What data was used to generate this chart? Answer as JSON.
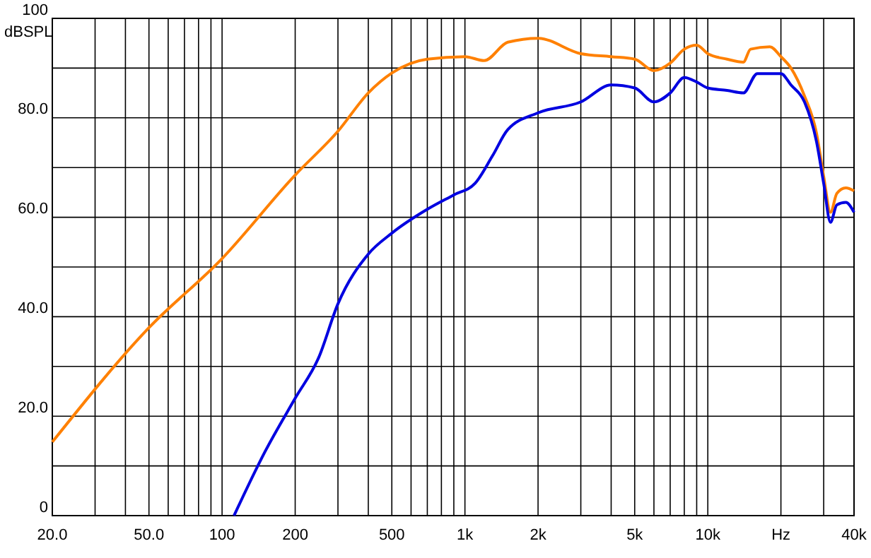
{
  "chart_data": {
    "type": "line",
    "ylabel": "dBSPL",
    "log": "x",
    "grid": true,
    "xlim": [
      20,
      40000
    ],
    "ylim": [
      0,
      100
    ],
    "xticks": [
      {
        "value": 20,
        "label": "20.0"
      },
      {
        "value": 30,
        "label": null
      },
      {
        "value": 40,
        "label": null
      },
      {
        "value": 50,
        "label": "50.0"
      },
      {
        "value": 60,
        "label": null
      },
      {
        "value": 70,
        "label": null
      },
      {
        "value": 80,
        "label": null
      },
      {
        "value": 90,
        "label": null
      },
      100,
      200,
      {
        "value": 300,
        "label": null
      },
      {
        "value": 400,
        "label": null
      },
      500,
      {
        "value": 600,
        "label": null
      },
      {
        "value": 700,
        "label": null
      },
      {
        "value": 800,
        "label": null
      },
      {
        "value": 900,
        "label": null
      },
      {
        "value": 1000,
        "label": "1k"
      },
      {
        "value": 2000,
        "label": "2k"
      },
      {
        "value": 3000,
        "label": null
      },
      {
        "value": 4000,
        "label": null
      },
      {
        "value": 5000,
        "label": "5k"
      },
      {
        "value": 6000,
        "label": null
      },
      {
        "value": 7000,
        "label": null
      },
      {
        "value": 8000,
        "label": null
      },
      {
        "value": 9000,
        "label": null
      },
      {
        "value": 10000,
        "label": "10k"
      },
      {
        "value": 20000,
        "label": "Hz"
      },
      {
        "value": 30000,
        "label": null
      },
      {
        "value": 40000,
        "label": "40k"
      }
    ],
    "yticks": [
      0,
      {
        "value": 10,
        "label": null
      },
      {
        "value": 20,
        "label": "20.0"
      },
      {
        "value": 30,
        "label": null
      },
      {
        "value": 40,
        "label": "40.0"
      },
      {
        "value": 50,
        "label": null
      },
      {
        "value": 60,
        "label": "60.0"
      },
      {
        "value": 70,
        "label": null
      },
      {
        "value": 80,
        "label": "80.0"
      },
      {
        "value": 90,
        "label": null
      },
      100
    ],
    "series": [
      {
        "color": "#ff8000",
        "x": [
          20,
          50,
          100,
          200,
          300,
          400,
          500,
          700,
          1000,
          1200,
          1500,
          2000,
          3000,
          4000,
          5000,
          6000,
          7000,
          8000,
          9000,
          10000,
          12000,
          14000,
          15000,
          18000,
          20000,
          22000,
          25000,
          28000,
          30000,
          32000,
          34000,
          37000,
          40000
        ],
        "values": [
          14.8,
          37.8,
          51.7,
          68.5,
          77.3,
          85,
          89,
          91.8,
          92.3,
          91.5,
          95.2,
          96,
          92.9,
          92.3,
          91.8,
          89.5,
          91,
          93.8,
          94.6,
          92.9,
          91.8,
          91.2,
          93.8,
          94.3,
          92.3,
          90,
          84.4,
          77,
          68.2,
          61,
          64.8,
          65.9,
          65.3
        ]
      },
      {
        "color": "#0000e0",
        "x": [
          112,
          150,
          200,
          250,
          300,
          400,
          500,
          700,
          900,
          1100,
          1300,
          1500,
          2000,
          3000,
          4000,
          5000,
          6000,
          7000,
          8000,
          9000,
          10000,
          12000,
          14000,
          16000,
          20000,
          22000,
          25000,
          28000,
          30000,
          32000,
          34000,
          37000,
          40000
        ],
        "values": [
          0,
          12.8,
          23.6,
          31.8,
          42.6,
          52.6,
          56.8,
          61.6,
          64.5,
          66.8,
          72.4,
          77.6,
          81,
          83.2,
          86.6,
          86,
          83.2,
          85,
          88.1,
          87.2,
          86,
          85.5,
          85,
          88.9,
          88.9,
          86.6,
          83.2,
          75.3,
          66.8,
          59,
          62.5,
          63,
          61
        ]
      }
    ]
  }
}
